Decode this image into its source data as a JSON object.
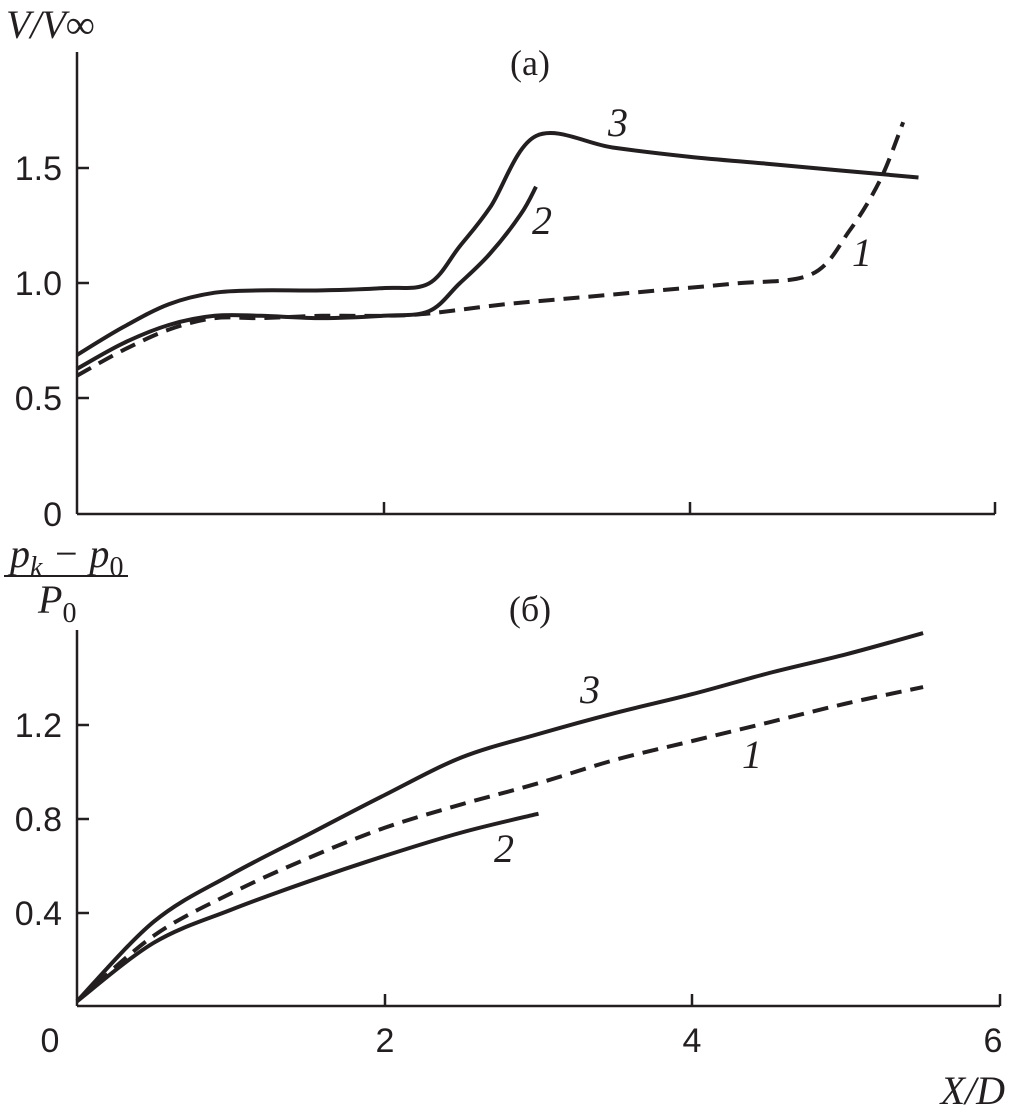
{
  "chart_data": [
    {
      "panel": "(a)",
      "type": "line",
      "title": "",
      "xlabel": "",
      "ylabel": "V/V∞",
      "xlim": [
        0,
        6
      ],
      "ylim": [
        0,
        2.0
      ],
      "x_ticks": [
        "",
        "",
        ""
      ],
      "y_ticks": [
        "0",
        "0.5",
        "1.0",
        "1.5"
      ],
      "grid": false,
      "series": [
        {
          "name": "1",
          "style": "dashed",
          "x": [
            0,
            0.3,
            0.6,
            0.9,
            1.2,
            1.6,
            2.0,
            2.3,
            2.8,
            3.3,
            3.8,
            4.3,
            4.8,
            5.05,
            5.25,
            5.4
          ],
          "y": [
            0.6,
            0.71,
            0.8,
            0.85,
            0.85,
            0.86,
            0.86,
            0.87,
            0.91,
            0.94,
            0.97,
            1.0,
            1.04,
            1.23,
            1.45,
            1.7
          ]
        },
        {
          "name": "2",
          "style": "solid",
          "x": [
            0,
            0.3,
            0.6,
            0.9,
            1.2,
            1.6,
            2.0,
            2.3,
            2.5,
            2.7,
            2.9,
            3.0
          ],
          "y": [
            0.63,
            0.74,
            0.82,
            0.86,
            0.86,
            0.85,
            0.86,
            0.88,
            1.0,
            1.13,
            1.3,
            1.42
          ]
        },
        {
          "name": "3",
          "style": "solid",
          "x": [
            0,
            0.3,
            0.6,
            0.9,
            1.2,
            1.6,
            2.0,
            2.3,
            2.5,
            2.7,
            3.0,
            3.5,
            4.0,
            4.5,
            5.0,
            5.5
          ],
          "y": [
            0.69,
            0.81,
            0.91,
            0.96,
            0.97,
            0.97,
            0.98,
            1.0,
            1.16,
            1.33,
            1.64,
            1.59,
            1.55,
            1.52,
            1.49,
            1.46
          ]
        }
      ],
      "curve_labels": [
        "3",
        "2",
        "1"
      ]
    },
    {
      "panel": "(б)",
      "type": "line",
      "title": "",
      "xlabel": "X/D",
      "ylabel": "(p_k − p_0) / P_0",
      "xlim": [
        0,
        6
      ],
      "ylim": [
        0,
        1.6
      ],
      "x_ticks": [
        "0",
        "2",
        "4",
        "6"
      ],
      "y_ticks": [
        "0.4",
        "0.8",
        "1.2"
      ],
      "grid": false,
      "series": [
        {
          "name": "1",
          "style": "dashed",
          "x": [
            0,
            0.5,
            1.0,
            1.5,
            2.0,
            2.5,
            3.0,
            3.5,
            4.0,
            4.5,
            5.0,
            5.5
          ],
          "y": [
            0.02,
            0.3,
            0.48,
            0.63,
            0.76,
            0.86,
            0.95,
            1.05,
            1.13,
            1.21,
            1.29,
            1.36
          ]
        },
        {
          "name": "2",
          "style": "solid",
          "x": [
            0,
            0.5,
            1.0,
            1.5,
            2.0,
            2.5,
            3.0
          ],
          "y": [
            0.02,
            0.27,
            0.41,
            0.53,
            0.64,
            0.74,
            0.82
          ]
        },
        {
          "name": "3",
          "style": "solid",
          "x": [
            0,
            0.5,
            1.0,
            1.5,
            2.0,
            2.5,
            3.0,
            3.5,
            4.0,
            4.5,
            5.0,
            5.5
          ],
          "y": [
            0.02,
            0.36,
            0.56,
            0.73,
            0.9,
            1.06,
            1.16,
            1.25,
            1.33,
            1.42,
            1.5,
            1.59
          ]
        }
      ],
      "curve_labels": [
        "3",
        "1",
        "2"
      ]
    }
  ]
}
